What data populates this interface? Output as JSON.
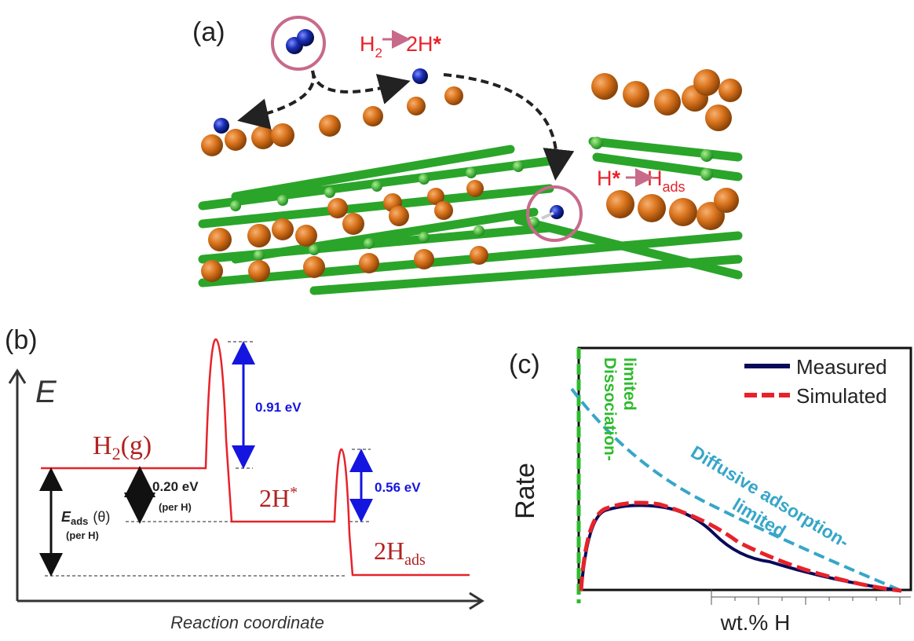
{
  "panel_a": {
    "label": "(a)",
    "reaction_1": {
      "lhs": "H",
      "lhs_sub": "2",
      "rhs": "2H",
      "rhs_mark": "*"
    },
    "reaction_2": {
      "lhs": "H",
      "lhs_mark": "*",
      "rhs": "H",
      "rhs_sub": "ads"
    }
  },
  "panel_b": {
    "label": "(b)",
    "axis_y": "E",
    "axis_x": "Reaction coordinate",
    "state_1": {
      "main": "H",
      "sub": "2",
      "rest": "(g)"
    },
    "state_2": {
      "main": "2H",
      "sup": "*"
    },
    "state_3": {
      "main": "2H",
      "sub": "ads"
    },
    "barrier_1": "0.91 eV",
    "barrier_2": "0.56 eV",
    "step": "0.20 eV",
    "step_note": "(per H)",
    "eads": {
      "main": "E",
      "sub": "ads",
      "theta": "(θ)",
      "note": "(per H)"
    }
  },
  "panel_c": {
    "label": "(c)",
    "y_label": "Rate",
    "x_label": "wt.% H",
    "legend": [
      "Measured",
      "Simulated"
    ],
    "annotation_1": [
      "Dissociation-",
      "limited"
    ],
    "annotation_2": [
      "Diffusive adsorption-",
      "limited"
    ]
  }
}
